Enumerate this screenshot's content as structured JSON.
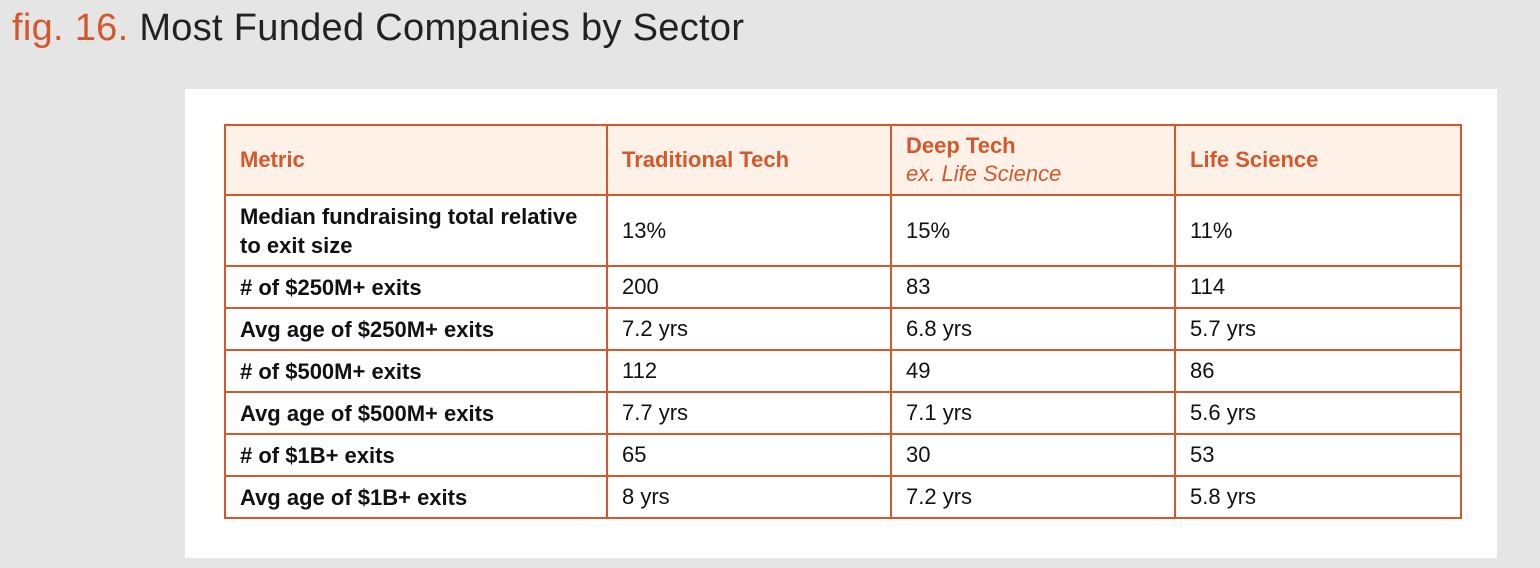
{
  "figure": {
    "prefix": "fig. 16.",
    "title": "Most Funded Companies by Sector"
  },
  "colors": {
    "accent": "#d4582b",
    "header_bg": "#fdf1e8",
    "page_bg": "#e5e5e5"
  },
  "chart_data": {
    "type": "table",
    "title": "Most Funded Companies by Sector",
    "columns": [
      {
        "name": "Metric",
        "subtitle": ""
      },
      {
        "name": "Traditional Tech",
        "subtitle": ""
      },
      {
        "name": "Deep Tech",
        "subtitle": "ex. Life Science"
      },
      {
        "name": "Life Science",
        "subtitle": ""
      }
    ],
    "rows": [
      {
        "metric": "Median fundraising total relative to exit size",
        "values": [
          "13%",
          "15%",
          "11%"
        ]
      },
      {
        "metric": "# of $250M+ exits",
        "values": [
          "200",
          "83",
          "114"
        ]
      },
      {
        "metric": "Avg age of $250M+ exits",
        "values": [
          "7.2 yrs",
          "6.8 yrs",
          "5.7 yrs"
        ]
      },
      {
        "metric": "# of $500M+ exits",
        "values": [
          "112",
          "49",
          "86"
        ]
      },
      {
        "metric": "Avg age of $500M+ exits",
        "values": [
          "7.7 yrs",
          "7.1 yrs",
          "5.6 yrs"
        ]
      },
      {
        "metric": "# of $1B+ exits",
        "values": [
          "65",
          "30",
          "53"
        ]
      },
      {
        "metric": "Avg age of $1B+ exits",
        "values": [
          "8 yrs",
          "7.2 yrs",
          "5.8 yrs"
        ]
      }
    ]
  }
}
